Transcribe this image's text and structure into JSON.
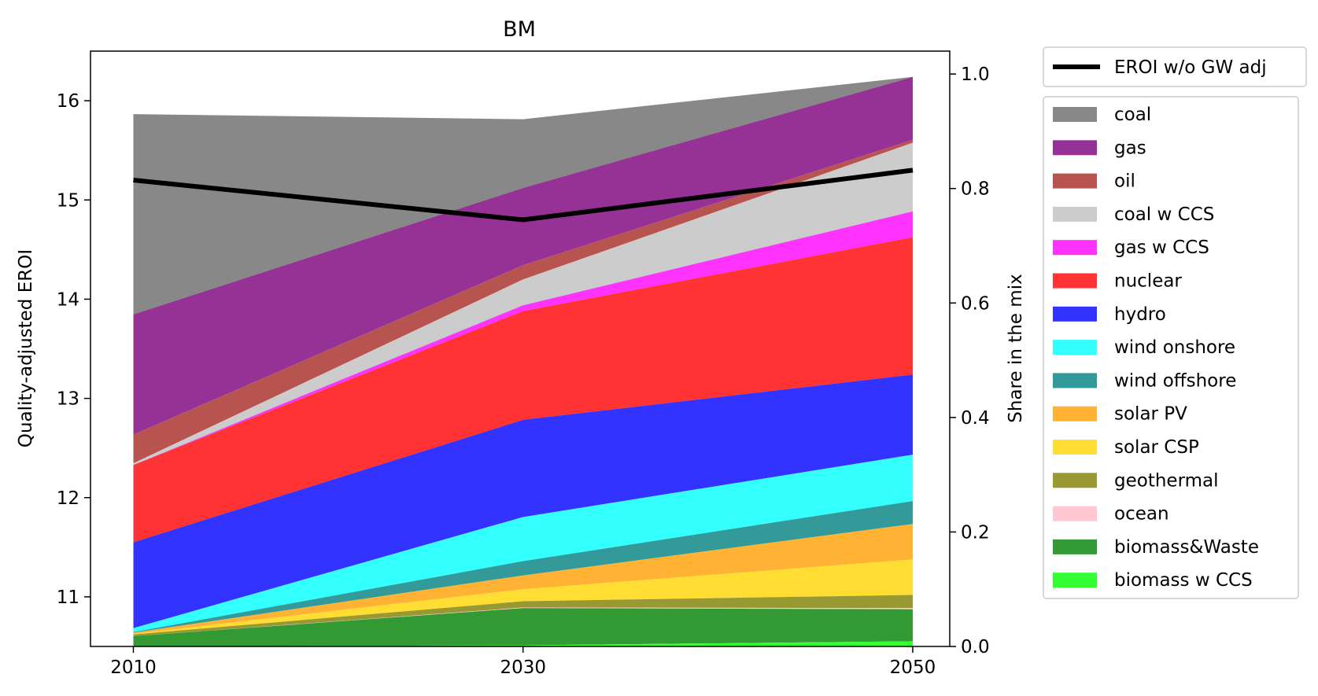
{
  "chart_data": {
    "type": "area",
    "title": "BM",
    "x": [
      2010,
      2030,
      2050
    ],
    "x_ticks": [
      "2010",
      "2030",
      "2050"
    ],
    "left_axis": {
      "label": "Quality-adjusted EROI",
      "ylim": [
        10.5,
        16.5
      ],
      "ticks": [
        "11",
        "12",
        "13",
        "14",
        "15",
        "16"
      ]
    },
    "right_axis": {
      "label": "Share in the mix",
      "ylim": [
        0.0,
        1.04
      ],
      "ticks": [
        "0.0",
        "0.2",
        "0.4",
        "0.6",
        "0.8",
        "1.0"
      ]
    },
    "line_series": {
      "name": "EROI w/o GW adj",
      "color": "#000000",
      "values": [
        15.2,
        14.8,
        15.3
      ]
    },
    "stack_series": [
      {
        "name": "coal",
        "color": "#888888",
        "values": [
          0.35,
          0.12,
          0.0
        ]
      },
      {
        "name": "gas",
        "color": "#963296",
        "values": [
          0.21,
          0.135,
          0.11
        ]
      },
      {
        "name": "oil",
        "color": "#b85450",
        "values": [
          0.05,
          0.025,
          0.005
        ]
      },
      {
        "name": "coal w CCS",
        "color": "#cccccc",
        "values": [
          0.003,
          0.045,
          0.12
        ]
      },
      {
        "name": "gas w CCS",
        "color": "#ff33ff",
        "values": [
          0.0,
          0.01,
          0.045
        ]
      },
      {
        "name": "nuclear",
        "color": "#ff3333",
        "values": [
          0.135,
          0.19,
          0.24
        ]
      },
      {
        "name": "hydro",
        "color": "#3333ff",
        "values": [
          0.15,
          0.17,
          0.14
        ]
      },
      {
        "name": "wind onshore",
        "color": "#33ffff",
        "values": [
          0.007,
          0.077,
          0.081
        ]
      },
      {
        "name": "wind offshore",
        "color": "#339999",
        "values": [
          0.001,
          0.025,
          0.04
        ]
      },
      {
        "name": "solar PV",
        "color": "#ffb233",
        "values": [
          0.002,
          0.024,
          0.062
        ]
      },
      {
        "name": "solar CSP",
        "color": "#ffdd33",
        "values": [
          0.001,
          0.021,
          0.062
        ]
      },
      {
        "name": "geothermal",
        "color": "#999933",
        "values": [
          0.003,
          0.011,
          0.023
        ]
      },
      {
        "name": "ocean",
        "color": "#ffc8d2",
        "values": [
          0.0,
          0.001,
          0.002
        ]
      },
      {
        "name": "biomass&Waste",
        "color": "#339933",
        "values": [
          0.018,
          0.065,
          0.056
        ]
      },
      {
        "name": "biomass w CCS",
        "color": "#33ff33",
        "values": [
          0.0,
          0.002,
          0.009
        ]
      }
    ],
    "grid": false,
    "legend_placement": "outside-right"
  }
}
